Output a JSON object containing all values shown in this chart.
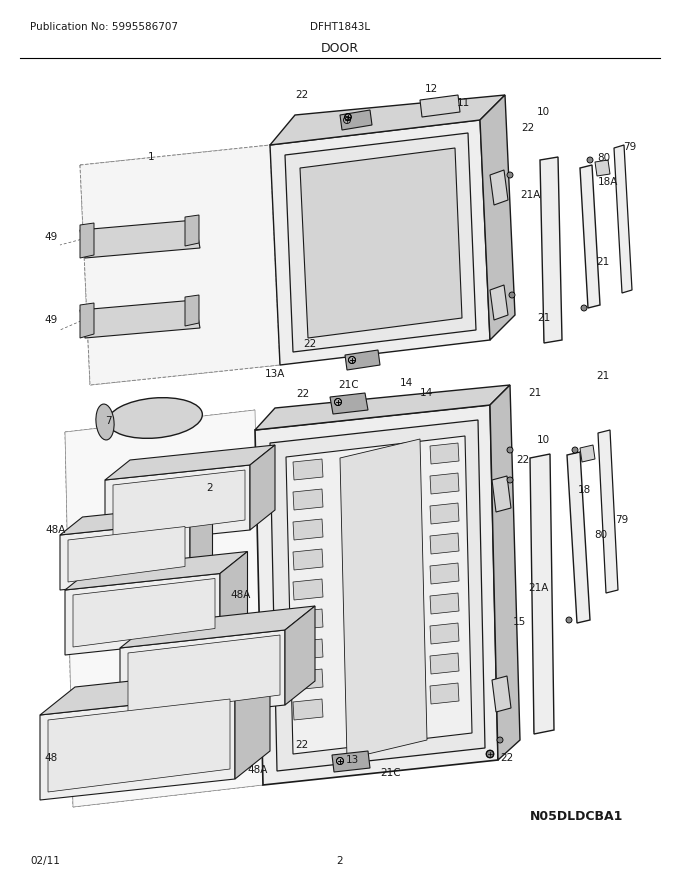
{
  "publication": "Publication No: 5995586707",
  "model": "DFHT1843L",
  "section": "DOOR",
  "date": "02/11",
  "page": "2",
  "diagram_code": "N05DLDCBA1",
  "bg_color": "#ffffff",
  "lc": "#1a1a1a",
  "gray_fill": "#d4d4d4",
  "light_fill": "#eeeeee",
  "mid_fill": "#c0c0c0",
  "dark_fill": "#aaaaaa"
}
